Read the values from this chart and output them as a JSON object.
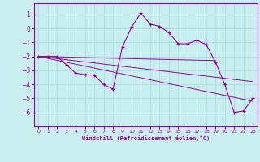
{
  "xlabel": "Windchill (Refroidissement éolien,°C)",
  "bg_color": "#c8eef0",
  "grid_color": "#aadddd",
  "line_color": "#990099",
  "xlim": [
    -0.5,
    23.5
  ],
  "ylim": [
    -7.0,
    1.8
  ],
  "yticks": [
    1,
    0,
    -1,
    -2,
    -3,
    -4,
    -5,
    -6
  ],
  "xticks": [
    0,
    1,
    2,
    3,
    4,
    5,
    6,
    7,
    8,
    9,
    10,
    11,
    12,
    13,
    14,
    15,
    16,
    17,
    18,
    19,
    20,
    21,
    22,
    23
  ],
  "line1_x": [
    0,
    1,
    2,
    3,
    4,
    5,
    6,
    7,
    8,
    9,
    10,
    11,
    12,
    13,
    14,
    15,
    16,
    17,
    18,
    19,
    20,
    21,
    22,
    23
  ],
  "line1_y": [
    -2.0,
    -2.0,
    -2.0,
    -2.6,
    -3.2,
    -3.3,
    -3.35,
    -4.0,
    -4.35,
    -1.35,
    0.1,
    1.1,
    0.3,
    0.15,
    -0.3,
    -1.1,
    -1.1,
    -0.85,
    -1.15,
    -2.4,
    -4.0,
    -6.0,
    -5.9,
    -5.0
  ],
  "line2_x": [
    0,
    19
  ],
  "line2_y": [
    -2.0,
    -2.3
  ],
  "line3_x": [
    0,
    23
  ],
  "line3_y": [
    -2.0,
    -3.8
  ],
  "line4_x": [
    0,
    23
  ],
  "line4_y": [
    -2.0,
    -5.2
  ]
}
